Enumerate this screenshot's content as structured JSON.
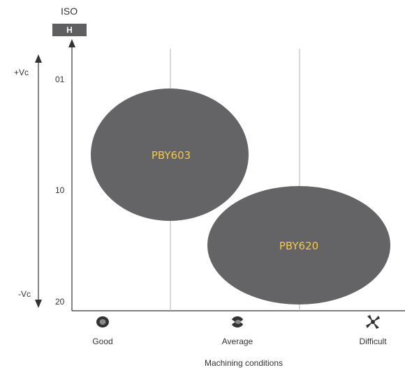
{
  "iso": {
    "label": "ISO",
    "group": "H"
  },
  "speed": {
    "high": "+Vc",
    "low": "-Vc"
  },
  "y_ticks": [
    "01",
    "10",
    "20"
  ],
  "conditions": [
    {
      "label": "Good",
      "icon": "good-condition-icon"
    },
    {
      "label": "Average",
      "icon": "average-condition-icon"
    },
    {
      "label": "Difficult",
      "icon": "difficult-condition-icon"
    }
  ],
  "x_axis_title": "Machining conditions",
  "grades": [
    {
      "name": "PBY603"
    },
    {
      "name": "PBY620"
    }
  ],
  "colors": {
    "ellipse": "#646466",
    "grade_text": "#f2c94c",
    "badge": "#5f5f61"
  }
}
